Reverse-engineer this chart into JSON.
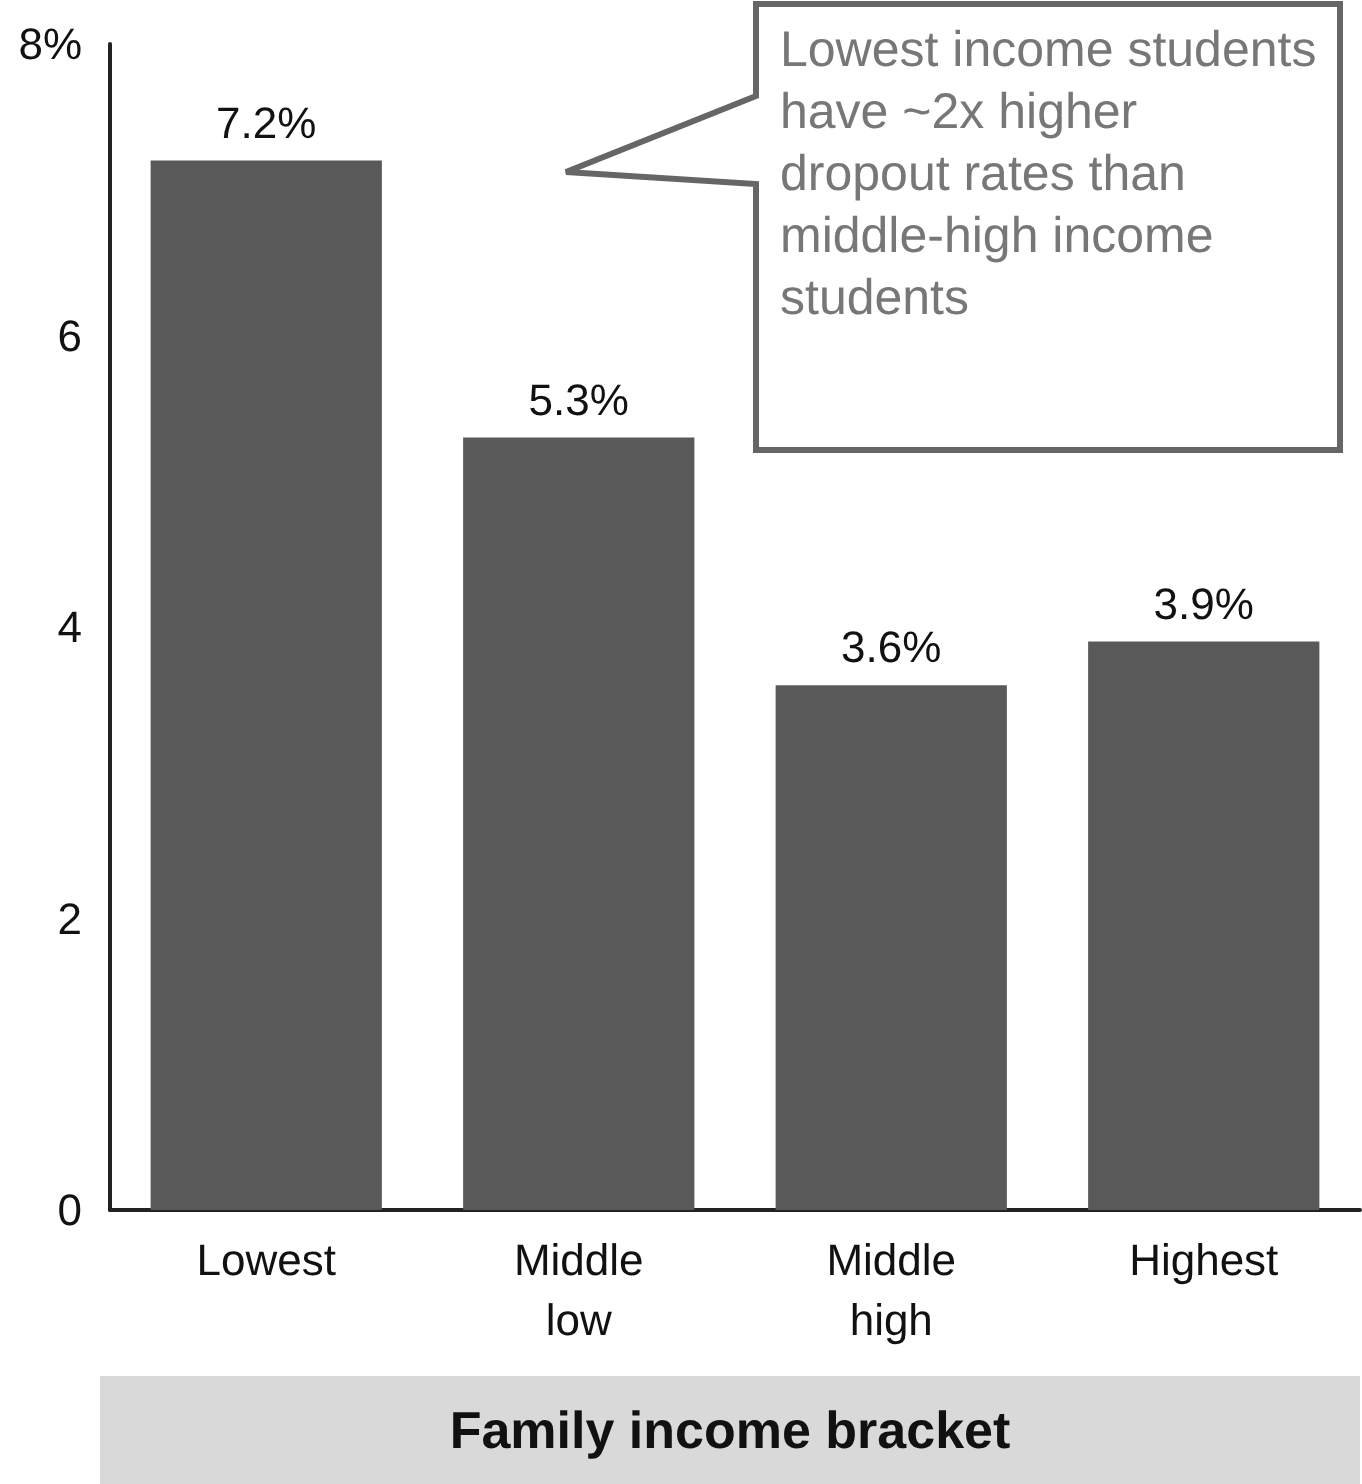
{
  "chart_data": {
    "type": "bar",
    "categories": [
      "Lowest",
      "Middle low",
      "Middle high",
      "Highest"
    ],
    "values": [
      7.2,
      5.3,
      3.6,
      3.9
    ],
    "value_labels": [
      "7.2%",
      "5.3%",
      "3.6%",
      "3.9%"
    ],
    "color": "#595959",
    "ylim": [
      0,
      8
    ],
    "yticks": [
      0,
      2,
      4,
      6,
      {
        "value": 8,
        "label": "8%"
      }
    ],
    "xlabel": "Family income bracket",
    "annotations": [
      "Lowest income students have ~2x higher dropout rates than middle-high income students"
    ]
  }
}
